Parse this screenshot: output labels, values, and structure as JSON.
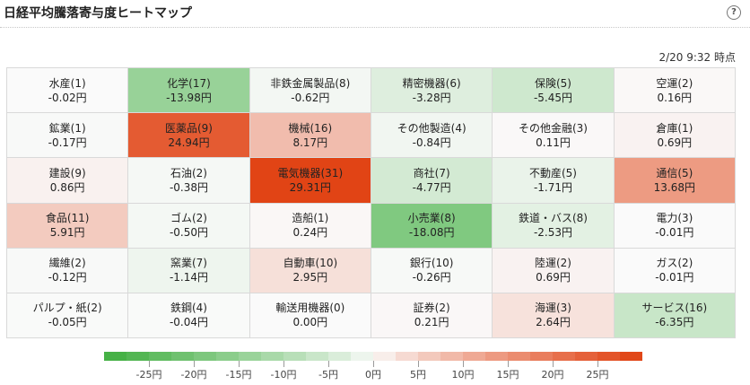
{
  "title": "日経平均騰落寄与度ヒートマップ",
  "help_icon": "question-icon",
  "help_label": "?",
  "timestamp": "2/20 9:32 時点",
  "sectors": [
    {
      "name": "水産(1)",
      "value": "-0.02円",
      "num": -0.02
    },
    {
      "name": "化学(17)",
      "value": "-13.98円",
      "num": -13.98
    },
    {
      "name": "非鉄金属製品(8)",
      "value": "-0.62円",
      "num": -0.62
    },
    {
      "name": "精密機器(6)",
      "value": "-3.28円",
      "num": -3.28
    },
    {
      "name": "保険(5)",
      "value": "-5.45円",
      "num": -5.45
    },
    {
      "name": "空運(2)",
      "value": "0.16円",
      "num": 0.16
    },
    {
      "name": "鉱業(1)",
      "value": "-0.17円",
      "num": -0.17
    },
    {
      "name": "医薬品(9)",
      "value": "24.94円",
      "num": 24.94
    },
    {
      "name": "機械(16)",
      "value": "8.17円",
      "num": 8.17
    },
    {
      "name": "その他製造(4)",
      "value": "-0.84円",
      "num": -0.84
    },
    {
      "name": "その他金融(3)",
      "value": "0.11円",
      "num": 0.11
    },
    {
      "name": "倉庫(1)",
      "value": "0.69円",
      "num": 0.69
    },
    {
      "name": "建設(9)",
      "value": "0.86円",
      "num": 0.86
    },
    {
      "name": "石油(2)",
      "value": "-0.38円",
      "num": -0.38
    },
    {
      "name": "電気機器(31)",
      "value": "29.31円",
      "num": 29.31
    },
    {
      "name": "商社(7)",
      "value": "-4.77円",
      "num": -4.77
    },
    {
      "name": "不動産(5)",
      "value": "-1.71円",
      "num": -1.71
    },
    {
      "name": "通信(5)",
      "value": "13.68円",
      "num": 13.68
    },
    {
      "name": "食品(11)",
      "value": "5.91円",
      "num": 5.91
    },
    {
      "name": "ゴム(2)",
      "value": "-0.50円",
      "num": -0.5
    },
    {
      "name": "造船(1)",
      "value": "0.24円",
      "num": 0.24
    },
    {
      "name": "小売業(8)",
      "value": "-18.08円",
      "num": -18.08
    },
    {
      "name": "鉄道・バス(8)",
      "value": "-2.53円",
      "num": -2.53
    },
    {
      "name": "電力(3)",
      "value": "-0.01円",
      "num": -0.01
    },
    {
      "name": "繊維(2)",
      "value": "-0.12円",
      "num": -0.12
    },
    {
      "name": "窯業(7)",
      "value": "-1.14円",
      "num": -1.14
    },
    {
      "name": "自動車(10)",
      "value": "2.95円",
      "num": 2.95
    },
    {
      "name": "銀行(10)",
      "value": "-0.26円",
      "num": -0.26
    },
    {
      "name": "陸運(2)",
      "value": "0.69円",
      "num": 0.69
    },
    {
      "name": "ガス(2)",
      "value": "-0.01円",
      "num": -0.01
    },
    {
      "name": "パルプ・紙(2)",
      "value": "-0.05円",
      "num": -0.05
    },
    {
      "name": "鉄鋼(4)",
      "value": "-0.04円",
      "num": -0.04
    },
    {
      "name": "輸送用機器(0)",
      "value": "0.00円",
      "num": 0.0
    },
    {
      "name": "証券(2)",
      "value": "0.21円",
      "num": 0.21
    },
    {
      "name": "海運(3)",
      "value": "2.64円",
      "num": 2.64
    },
    {
      "name": "サービス(16)",
      "value": "-6.35円",
      "num": -6.35
    }
  ],
  "legend": {
    "labels": [
      "-25円",
      "-20円",
      "-15円",
      "-10円",
      "-5円",
      "0円",
      "5円",
      "10円",
      "15円",
      "20円",
      "25円"
    ],
    "min": -30,
    "max": 30,
    "neg_color": "#3fae3f",
    "pos_color": "#e04010",
    "neutral_color": "#fafafa"
  }
}
